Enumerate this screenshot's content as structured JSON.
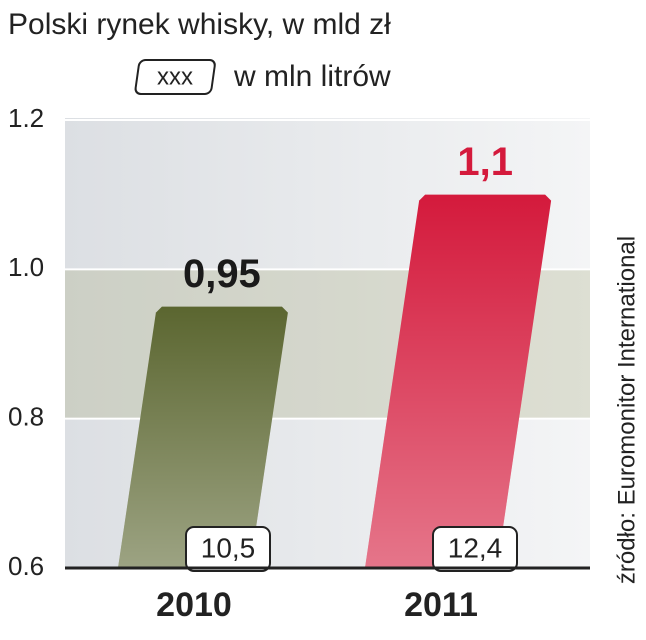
{
  "chart_data": {
    "type": "bar",
    "title": "Polski rynek whisky, w mld zł",
    "legend_badge": "xxx",
    "legend_text": "w mln litrów",
    "source": "źródło:  Euromonitor International",
    "categories": [
      "2010",
      "2011"
    ],
    "values": [
      0.95,
      1.1
    ],
    "value_labels": [
      "0,95",
      "1,1"
    ],
    "colors": [
      "#5b6630",
      "#d41a3c"
    ],
    "label_colors": [
      "#1a1a1a",
      "#d41a3c"
    ],
    "volumes": [
      10.5,
      12.4
    ],
    "volume_labels": [
      "10,5",
      "12,4"
    ],
    "ylim": [
      0.6,
      1.2
    ],
    "yticks": [
      0.6,
      0.8,
      {
        "value": 1,
        "label": "1.0"
      },
      1.2
    ],
    "grid": true
  }
}
